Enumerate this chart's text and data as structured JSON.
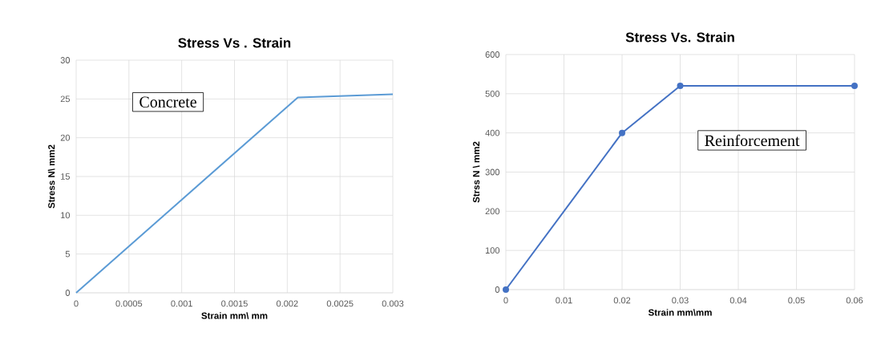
{
  "chart_data": [
    {
      "type": "line",
      "title": "Stress Vs . Strain",
      "xlabel": "Strain mm\\ mm",
      "ylabel": "Stress N\\ mm2",
      "annotations": [
        "Concrete"
      ],
      "x": [
        0,
        0.0021,
        0.003
      ],
      "series": [
        {
          "color": "#5b9bd5",
          "values": [
            0,
            25.2,
            25.6
          ]
        }
      ],
      "xlim": [
        0,
        0.003
      ],
      "xticks": [
        0,
        0.0005,
        0.001,
        0.0015,
        0.002,
        0.0025,
        0.003
      ],
      "ylim": [
        0,
        30
      ],
      "yticks": [
        0,
        5,
        10,
        15,
        20,
        25,
        30
      ],
      "grid": true
    },
    {
      "type": "line",
      "title": "Stress Vs. Strain",
      "xlabel": "Strain mm\\mm",
      "ylabel": "Strss N \\ mm2",
      "annotations": [
        "Reinforcement"
      ],
      "x": [
        0,
        0.02,
        0.03,
        0.06
      ],
      "series": [
        {
          "color": "#4472c4",
          "values": [
            0,
            400,
            520,
            520
          ]
        }
      ],
      "xlim": [
        0,
        0.06
      ],
      "xticks": [
        0,
        0.01,
        0.02,
        0.03,
        0.04,
        0.05,
        0.06
      ],
      "ylim": [
        0,
        600
      ],
      "yticks": [
        0,
        100,
        200,
        300,
        400,
        500,
        600
      ],
      "grid": true,
      "marker": "circle"
    }
  ]
}
